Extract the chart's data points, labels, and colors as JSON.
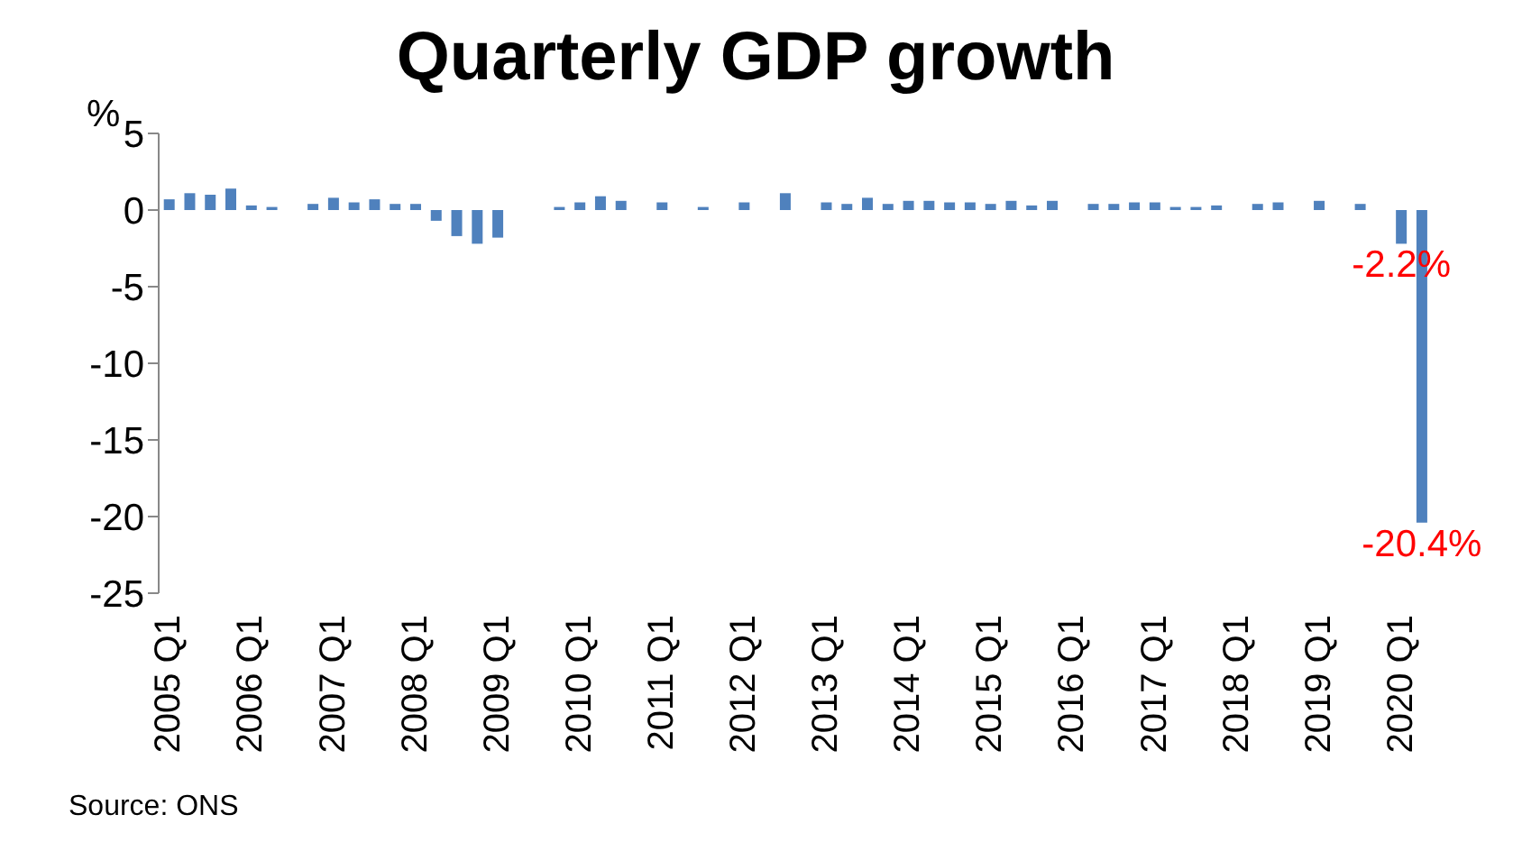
{
  "chart_data": {
    "type": "bar",
    "title": "Quarterly GDP growth",
    "ylabel": "%",
    "categories": [
      "2005 Q1",
      null,
      null,
      null,
      "2006 Q1",
      null,
      null,
      null,
      "2007 Q1",
      null,
      null,
      null,
      "2008 Q1",
      null,
      null,
      null,
      "2009 Q1",
      null,
      null,
      null,
      "2010 Q1",
      null,
      null,
      null,
      "2011 Q1",
      null,
      null,
      null,
      "2012 Q1",
      null,
      null,
      null,
      "2013 Q1",
      null,
      null,
      null,
      "2014 Q1",
      null,
      null,
      null,
      "2015 Q1",
      null,
      null,
      null,
      "2016 Q1",
      null,
      null,
      null,
      "2017 Q1",
      null,
      null,
      null,
      "2018 Q1",
      null,
      null,
      null,
      "2019 Q1",
      null,
      null,
      null,
      "2020 Q1",
      null
    ],
    "values": [
      0.7,
      1.1,
      1.0,
      1.4,
      0.3,
      0.2,
      0,
      0.4,
      0.8,
      0.5,
      0.7,
      0.4,
      0.4,
      -0.7,
      -1.7,
      -2.2,
      -1.8,
      0,
      0,
      0.2,
      0.5,
      0.9,
      0.6,
      0,
      0.5,
      0,
      0.2,
      0,
      0.5,
      0,
      1.1,
      0,
      0.5,
      0.4,
      0.8,
      0.4,
      0.6,
      0.6,
      0.5,
      0.5,
      0.4,
      0.6,
      0.3,
      0.6,
      0,
      0.4,
      0.4,
      0.5,
      0.5,
      0.2,
      0.2,
      0.3,
      0,
      0.4,
      0.5,
      0,
      0.6,
      0,
      0.4,
      0,
      -2.2,
      -20.4
    ],
    "value_labels": [
      null,
      null,
      null,
      null,
      null,
      null,
      null,
      null,
      null,
      null,
      null,
      null,
      null,
      null,
      null,
      null,
      null,
      null,
      null,
      null,
      null,
      null,
      null,
      null,
      null,
      null,
      null,
      null,
      null,
      null,
      null,
      null,
      null,
      null,
      null,
      null,
      null,
      null,
      null,
      null,
      null,
      null,
      null,
      null,
      null,
      null,
      null,
      null,
      null,
      null,
      null,
      null,
      null,
      null,
      null,
      null,
      null,
      null,
      null,
      null,
      "-2.2%",
      "-20.4%"
    ],
    "color": "#4f81bd",
    "ylim": [
      -25,
      5
    ],
    "yticks": [
      5,
      0,
      -5,
      -10,
      -15,
      -20,
      -25
    ],
    "grid": false,
    "legend": false,
    "annotations": [
      "Source: ONS"
    ]
  }
}
